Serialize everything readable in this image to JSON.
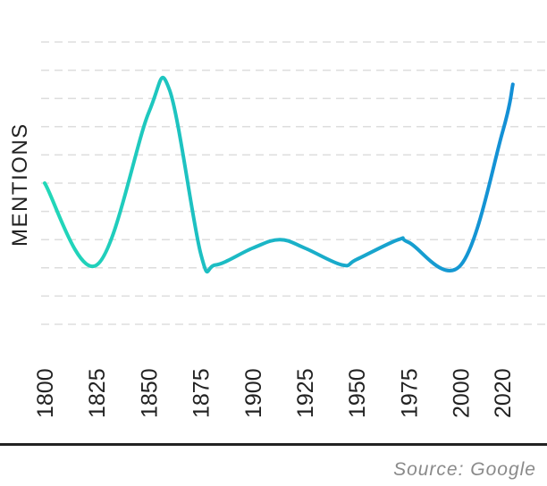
{
  "chart_data": {
    "type": "line",
    "title": "",
    "xlabel": "",
    "ylabel": "MENTIONS",
    "x": [
      1800,
      1825,
      1850,
      1860,
      1875,
      1882,
      1900,
      1913,
      1925,
      1943,
      1950,
      1970,
      1975,
      2000,
      2020,
      2025
    ],
    "y": [
      5.0,
      2.1,
      7.5,
      8.3,
      2.5,
      2.1,
      2.7,
      3.0,
      2.7,
      2.1,
      2.3,
      3.0,
      2.9,
      2.1,
      6.8,
      8.5
    ],
    "x_ticks": [
      "1800",
      "1825",
      "1850",
      "1875",
      "1900",
      "1925",
      "1950",
      "1975",
      "2000",
      "2020"
    ],
    "ylim": [
      0,
      10
    ],
    "grid": true,
    "colors": {
      "line_start": "#22d8b8",
      "line_end": "#138fd6",
      "grid": "#dddddd",
      "text": "#222222"
    }
  },
  "source": "Source: Google"
}
